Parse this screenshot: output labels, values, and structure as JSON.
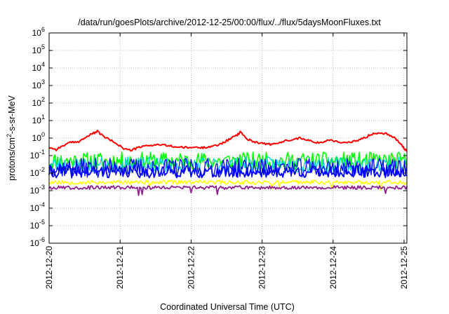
{
  "chart_data": {
    "type": "line",
    "title": "/data/run/goesPlots/archive/2012-12-25/00:00/flux/../flux/5daysMoonFluxes.txt",
    "xlabel": "Coordinated Universal Time (UTC)",
    "ylabel": {
      "base": "protons/cm",
      "exp": "2",
      "rest": "-s-sr-MeV"
    },
    "y_scale": "log",
    "ylim": [
      1e-06,
      1000000.0
    ],
    "y_ticks": [
      {
        "base": "10",
        "exp": "-6",
        "value": 1e-06
      },
      {
        "base": "10",
        "exp": "-5",
        "value": 1e-05
      },
      {
        "base": "10",
        "exp": "-4",
        "value": 0.0001
      },
      {
        "base": "10",
        "exp": "-3",
        "value": 0.001
      },
      {
        "base": "10",
        "exp": "-2",
        "value": 0.01
      },
      {
        "base": "10",
        "exp": "-1",
        "value": 0.1
      },
      {
        "base": "10",
        "exp": "0",
        "value": 1
      },
      {
        "base": "10",
        "exp": "1",
        "value": 10
      },
      {
        "base": "10",
        "exp": "2",
        "value": 100
      },
      {
        "base": "10",
        "exp": "3",
        "value": 1000
      },
      {
        "base": "10",
        "exp": "4",
        "value": 10000
      },
      {
        "base": "10",
        "exp": "5",
        "value": 100000
      },
      {
        "base": "10",
        "exp": "6",
        "value": 1000000
      }
    ],
    "x_range_days": [
      0,
      5.04
    ],
    "x_ticks": [
      {
        "label": "2012-12-20",
        "day": 0
      },
      {
        "label": "2012-12-21",
        "day": 1
      },
      {
        "label": "2012-12-22",
        "day": 2
      },
      {
        "label": "2012-12-23",
        "day": 3
      },
      {
        "label": "2012-12-24",
        "day": 4
      },
      {
        "label": "2012-12-25",
        "day": 5
      }
    ],
    "grid": true,
    "series": [
      {
        "color": "#ff0000",
        "width": 2,
        "points": [
          [
            0,
            0.3
          ],
          [
            0.1,
            0.22
          ],
          [
            0.2,
            0.38
          ],
          [
            0.3,
            0.55
          ],
          [
            0.4,
            0.6
          ],
          [
            0.5,
            1.0
          ],
          [
            0.6,
            1.7
          ],
          [
            0.68,
            2.4
          ],
          [
            0.75,
            1.4
          ],
          [
            0.85,
            0.8
          ],
          [
            0.95,
            0.5
          ],
          [
            1.05,
            0.25
          ],
          [
            1.15,
            0.2
          ],
          [
            1.25,
            0.28
          ],
          [
            1.35,
            0.35
          ],
          [
            1.45,
            0.4
          ],
          [
            1.55,
            0.42
          ],
          [
            1.65,
            0.38
          ],
          [
            1.75,
            0.33
          ],
          [
            1.85,
            0.3
          ],
          [
            1.95,
            0.28
          ],
          [
            2.05,
            0.3
          ],
          [
            2.15,
            0.28
          ],
          [
            2.25,
            0.33
          ],
          [
            2.35,
            0.36
          ],
          [
            2.45,
            0.55
          ],
          [
            2.55,
            0.9
          ],
          [
            2.65,
            1.5
          ],
          [
            2.7,
            2.3
          ],
          [
            2.78,
            0.9
          ],
          [
            2.85,
            0.7
          ],
          [
            2.95,
            0.55
          ],
          [
            3.05,
            0.48
          ],
          [
            3.15,
            0.42
          ],
          [
            3.25,
            0.55
          ],
          [
            3.35,
            0.75
          ],
          [
            3.45,
            0.9
          ],
          [
            3.55,
            1.0
          ],
          [
            3.65,
            0.8
          ],
          [
            3.75,
            0.52
          ],
          [
            3.85,
            0.6
          ],
          [
            3.95,
            0.8
          ],
          [
            4.05,
            0.65
          ],
          [
            4.15,
            0.55
          ],
          [
            4.25,
            0.55
          ],
          [
            4.35,
            0.75
          ],
          [
            4.45,
            1.1
          ],
          [
            4.55,
            1.7
          ],
          [
            4.65,
            2.1
          ],
          [
            4.75,
            1.8
          ],
          [
            4.85,
            1.2
          ],
          [
            4.9,
            0.8
          ],
          [
            4.96,
            0.45
          ],
          [
            5.0,
            0.25
          ],
          [
            5.04,
            0.18
          ]
        ]
      },
      {
        "color": "#00ff00",
        "width": 1.6,
        "base": 0.05,
        "amp": 0.5,
        "seed": 11
      },
      {
        "color": "#00d0d0",
        "width": 1.3,
        "base": 0.03,
        "amp": 0.45,
        "seed": 23
      },
      {
        "color": "#0000ff",
        "width": 1.3,
        "base": 0.02,
        "amp": 0.55,
        "seed": 37
      },
      {
        "color": "#0000ff",
        "width": 1.8,
        "base": 0.012,
        "amp": 0.35,
        "seed": 41
      },
      {
        "color": "#ffff00",
        "width": 1.6,
        "base": 0.003,
        "amp": 0.12,
        "seed": 53
      },
      {
        "color": "#902090",
        "width": 1.8,
        "base": 0.0015,
        "amp": 0.1,
        "seed": 67
      }
    ]
  }
}
